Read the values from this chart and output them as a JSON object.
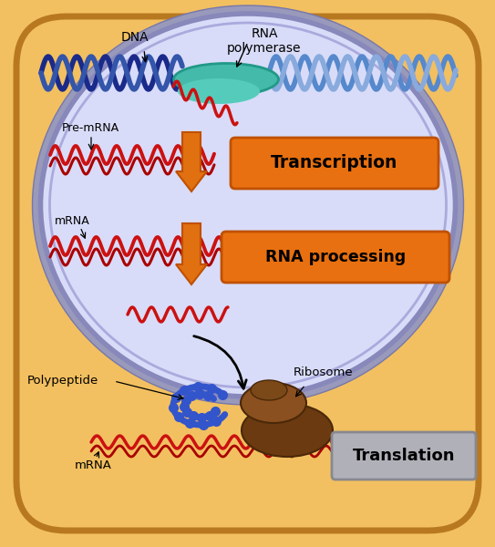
{
  "bg_color": "#F2C060",
  "outer_border": "#B87820",
  "nucleus_bg": "#C8CCEE",
  "nucleus_border": "#8888BB",
  "nucleus_inner": "#D8DCF8",
  "fig_size": [
    5.43,
    6.0
  ],
  "dpi": 100,
  "labels": {
    "DNA": "DNA",
    "RNA_pol": "RNA\npolymerase",
    "pre_mRNA": "Pre-mRNA",
    "mRNA1": "mRNA",
    "mRNA2": "mRNA",
    "ribosome": "Ribosome",
    "polypeptide": "Polypeptide",
    "transcription": "Transcription",
    "rna_processing": "RNA processing",
    "translation": "Translation"
  },
  "arrow_orange": "#E07010",
  "dna_blue_dark": "#1A2A8A",
  "dna_blue_mid": "#3355AA",
  "dna_blue_light": "#5588CC",
  "dna_blue_pale": "#88AADD",
  "rna_red": "#CC1111",
  "rna_dark_red": "#991111",
  "teal": "#44BBAA",
  "ribosome_brown1": "#6B3A10",
  "ribosome_brown2": "#8B5020",
  "polypeptide_blue": "#3355CC",
  "label_bg_orange": "#E07010",
  "label_bg_gray": "#B0B0B8",
  "label_border_gray": "#888890"
}
